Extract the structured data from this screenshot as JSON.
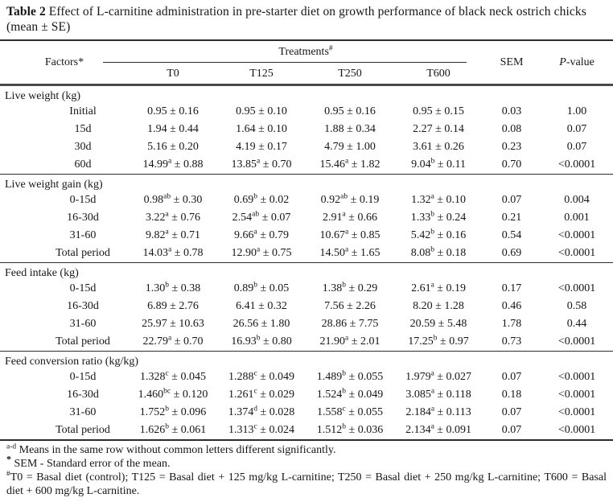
{
  "title": {
    "bold": "Table 2",
    "rest": " Effect of L-carnitine administration in pre-starter diet on growth performance of black neck ostrich chicks (mean ± SE)"
  },
  "header": {
    "factors": "Factors*",
    "treatments": "Treatments",
    "treatments_sup": "#",
    "treatment_cols": [
      "T0",
      "T125",
      "T250",
      "T600"
    ],
    "sem": "SEM",
    "p_italic": "P",
    "p_rest": "-value"
  },
  "table": {
    "sections": [
      {
        "name": "Live weight (kg)",
        "rows": [
          {
            "factor": "Initial",
            "cells": [
              [
                "0.95",
                "",
                "0.16"
              ],
              [
                "0.95",
                "",
                "0.10"
              ],
              [
                "0.95",
                "",
                "0.16"
              ],
              [
                "0.95",
                "",
                "0.15"
              ]
            ],
            "sem": "0.03",
            "p": "1.00"
          },
          {
            "factor": "15d",
            "cells": [
              [
                "1.94",
                "",
                "0.44"
              ],
              [
                "1.64",
                "",
                "0.10"
              ],
              [
                "1.88",
                "",
                "0.34"
              ],
              [
                "2.27",
                "",
                "0.14"
              ]
            ],
            "sem": "0.08",
            "p": "0.07"
          },
          {
            "factor": "30d",
            "cells": [
              [
                "5.16",
                "",
                "0.20"
              ],
              [
                "4.19",
                "",
                "0.17"
              ],
              [
                "4.79",
                "",
                "1.00"
              ],
              [
                "3.61",
                "",
                "0.26"
              ]
            ],
            "sem": "0.23",
            "p": "0.07"
          },
          {
            "factor": "60d",
            "cells": [
              [
                "14.99",
                "a",
                "0.88"
              ],
              [
                "13.85",
                "a",
                "0.70"
              ],
              [
                "15.46",
                "a",
                "1.82"
              ],
              [
                "9.04",
                "b",
                "0.11"
              ]
            ],
            "sem": "0.70",
            "p": "<0.0001"
          }
        ]
      },
      {
        "name": "Live weight gain (kg)",
        "rows": [
          {
            "factor": "0-15d",
            "cells": [
              [
                "0.98",
                "ab",
                "0.30"
              ],
              [
                "0.69",
                "b",
                "0.02"
              ],
              [
                "0.92",
                "ab",
                "0.19"
              ],
              [
                "1.32",
                "a",
                "0.10"
              ]
            ],
            "sem": "0.07",
            "p": "0.004"
          },
          {
            "factor": "16-30d",
            "cells": [
              [
                "3.22",
                "a",
                "0.76"
              ],
              [
                "2.54",
                "ab",
                "0.07"
              ],
              [
                "2.91",
                "a",
                "0.66"
              ],
              [
                "1.33",
                "b",
                "0.24"
              ]
            ],
            "sem": "0.21",
            "p": "0.001"
          },
          {
            "factor": "31-60",
            "cells": [
              [
                "9.82",
                "a",
                "0.71"
              ],
              [
                "9.66",
                "a",
                "0.79"
              ],
              [
                "10.67",
                "a",
                "0.85"
              ],
              [
                "5.42",
                "b",
                "0.16"
              ]
            ],
            "sem": "0.54",
            "p": "<0.0001"
          },
          {
            "factor": "Total period",
            "cells": [
              [
                "14.03",
                "a",
                "0.78"
              ],
              [
                "12.90",
                "a",
                "0.75"
              ],
              [
                "14.50",
                "a",
                "1.65"
              ],
              [
                "8.08",
                "b",
                "0.18"
              ]
            ],
            "sem": "0.69",
            "p": "<0.0001"
          }
        ]
      },
      {
        "name": "Feed intake (kg)",
        "rows": [
          {
            "factor": "0-15d",
            "cells": [
              [
                "1.30",
                "b",
                "0.38"
              ],
              [
                "0.89",
                "b",
                "0.05"
              ],
              [
                "1.38",
                "b",
                "0.29"
              ],
              [
                "2.61",
                "a",
                "0.19"
              ]
            ],
            "sem": "0.17",
            "p": "<0.0001"
          },
          {
            "factor": "16-30d",
            "cells": [
              [
                "6.89",
                "",
                "2.76"
              ],
              [
                "6.41",
                "",
                "0.32"
              ],
              [
                "7.56",
                "",
                "2.26"
              ],
              [
                "8.20",
                "",
                "1.28"
              ]
            ],
            "sem": "0.46",
            "p": "0.58"
          },
          {
            "factor": "31-60",
            "cells": [
              [
                "25.97",
                "",
                "10.63"
              ],
              [
                "26.56",
                "",
                "1.80"
              ],
              [
                "28.86",
                "",
                "7.75"
              ],
              [
                "20.59",
                "",
                "5.48"
              ]
            ],
            "sem": "1.78",
            "p": "0.44"
          },
          {
            "factor": "Total period",
            "cells": [
              [
                "22.79",
                "a",
                "0.70"
              ],
              [
                "16.93",
                "b",
                "0.80"
              ],
              [
                "21.90",
                "a",
                "2.01"
              ],
              [
                "17.25",
                "b",
                "0.97"
              ]
            ],
            "sem": "0.73",
            "p": "<0.0001"
          }
        ]
      },
      {
        "name": "Feed conversion ratio (kg/kg)",
        "rows": [
          {
            "factor": "0-15d",
            "cells": [
              [
                "1.328",
                "c",
                "0.045"
              ],
              [
                "1.288",
                "c",
                "0.049"
              ],
              [
                "1.489",
                "b",
                "0.055"
              ],
              [
                "1.979",
                "a",
                "0.027"
              ]
            ],
            "sem": "0.07",
            "p": "<0.0001"
          },
          {
            "factor": "16-30d",
            "cells": [
              [
                "1.460",
                "bc",
                "0.120"
              ],
              [
                "1.261",
                "c",
                "0.029"
              ],
              [
                "1.524",
                "b",
                "0.049"
              ],
              [
                "3.085",
                "a",
                "0.118"
              ]
            ],
            "sem": "0.18",
            "p": "<0.0001"
          },
          {
            "factor": "31-60",
            "cells": [
              [
                "1.752",
                "b",
                "0.096"
              ],
              [
                "1.374",
                "d",
                "0.028"
              ],
              [
                "1.558",
                "c",
                "0.055"
              ],
              [
                "2.184",
                "a",
                "0.113"
              ]
            ],
            "sem": "0.07",
            "p": "<0.0001"
          },
          {
            "factor": "Total period",
            "cells": [
              [
                "1.626",
                "b",
                "0.061"
              ],
              [
                "1.313",
                "c",
                "0.024"
              ],
              [
                "1.512",
                "b",
                "0.036"
              ],
              [
                "2.134",
                "a",
                "0.091"
              ]
            ],
            "sem": "0.07",
            "p": "<0.0001"
          }
        ]
      }
    ]
  },
  "footnotes": [
    {
      "sup": "a-d",
      "text": " Means in the same row without common letters different significantly.",
      "style": "plain"
    },
    {
      "sup": "*",
      "text": " SEM - Standard error of the mean.",
      "style": "bold_star"
    },
    {
      "sup": "#",
      "text": "T0 = Basal diet (control); T125 = Basal diet + 125 mg/kg L-carnitine; T250 = Basal diet + 250 mg/kg L-carnitine; T600 = Basal diet + 600 mg/kg L-carnitine.",
      "style": "justify"
    }
  ]
}
